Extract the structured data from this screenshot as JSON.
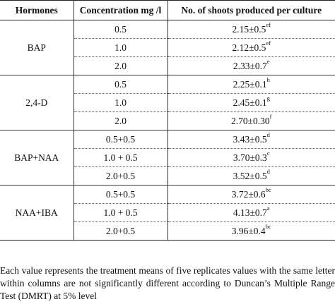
{
  "table": {
    "headers": [
      "Hormones",
      "Concentration mg /l",
      "No. of shoots produced per culture"
    ],
    "groups": [
      {
        "hormone": "BAP",
        "rows": [
          {
            "concentration": "0.5",
            "value": "2.15±0.5",
            "letters": "ef"
          },
          {
            "concentration": "1.0",
            "value": "2.12±0.5",
            "letters": "ef"
          },
          {
            "concentration": "2.0",
            "value": "2.33±0.7",
            "letters": "e"
          }
        ]
      },
      {
        "hormone": "2,4-D",
        "rows": [
          {
            "concentration": "0.5",
            "value": "2.25±0.1",
            "letters": "h"
          },
          {
            "concentration": "1.0",
            "value": "2.45±0.1",
            "letters": "g"
          },
          {
            "concentration": "2.0",
            "value": "2.70±0.30",
            "letters": "f"
          }
        ]
      },
      {
        "hormone": "BAP+NAA",
        "rows": [
          {
            "concentration": "0.5+0.5",
            "value": "3.43±0.5",
            "letters": "d"
          },
          {
            "concentration": "1.0 + 0.5",
            "value": "3.70±0.3",
            "letters": "c"
          },
          {
            "concentration": "2.0+0.5",
            "value": "3.52±0.5",
            "letters": "d"
          }
        ]
      },
      {
        "hormone": "NAA+IBA",
        "rows": [
          {
            "concentration": "0.5+0.5",
            "value": "3.72±0.6",
            "letters": "bc"
          },
          {
            "concentration": "1.0 + 0.5",
            "value": "4.13±0.7",
            "letters": "a"
          },
          {
            "concentration": "2.0+0.5",
            "value": "3.96±0.4",
            "letters": "bc"
          }
        ]
      }
    ]
  },
  "footnote": "Each value represents the treatment means of five replicates values with the same letter within columns are not significantly different according to Duncan’s Multiple Range Test (DMRT) at 5% level"
}
